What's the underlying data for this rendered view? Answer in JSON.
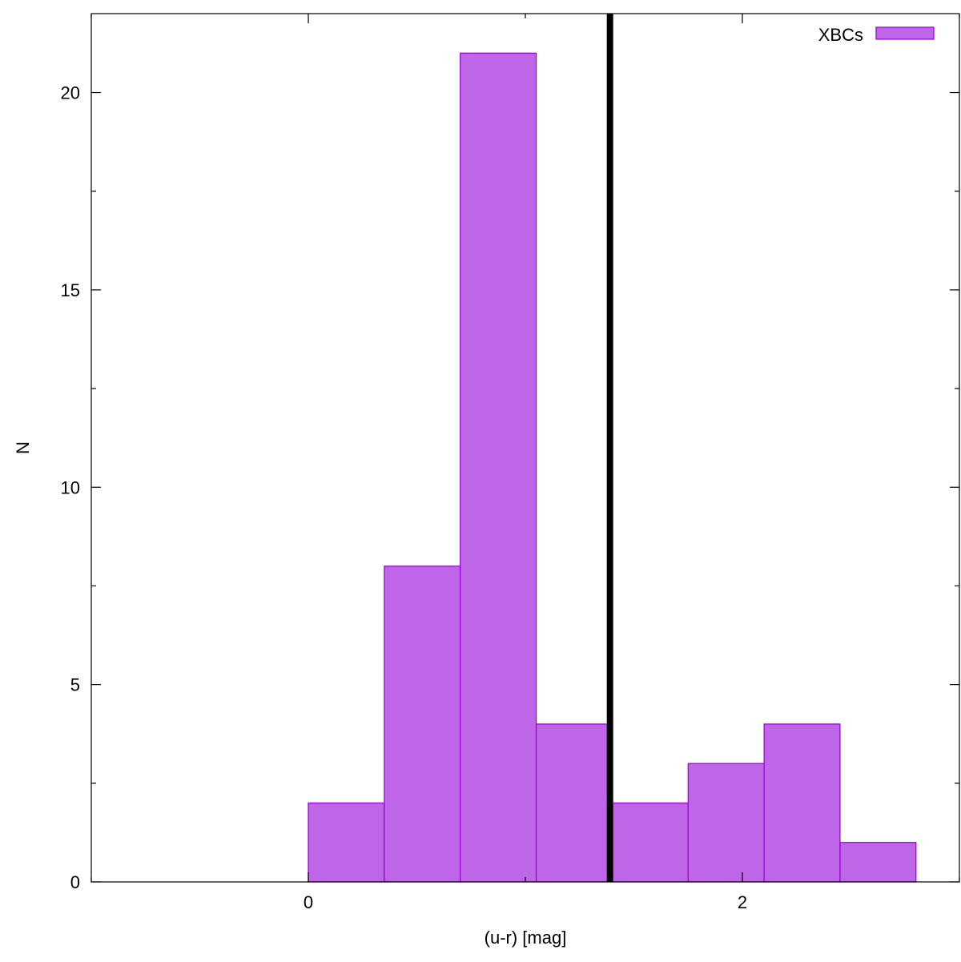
{
  "chart_data": {
    "type": "bar",
    "title": "",
    "xlabel": "(u-r) [mag]",
    "ylabel": "N",
    "xlim": [
      -1.0,
      3.0
    ],
    "ylim": [
      0,
      22
    ],
    "bin_width": 0.35,
    "bins": [
      {
        "x_start": 0.0,
        "x_end": 0.35,
        "value": 2
      },
      {
        "x_start": 0.35,
        "x_end": 0.7,
        "value": 8
      },
      {
        "x_start": 0.7,
        "x_end": 1.05,
        "value": 21
      },
      {
        "x_start": 1.05,
        "x_end": 1.4,
        "value": 4
      },
      {
        "x_start": 1.4,
        "x_end": 1.75,
        "value": 2
      },
      {
        "x_start": 1.75,
        "x_end": 2.1,
        "value": 3
      },
      {
        "x_start": 2.1,
        "x_end": 2.45,
        "value": 4
      },
      {
        "x_start": 2.45,
        "x_end": 2.8,
        "value": 1
      }
    ],
    "series": [
      {
        "name": "XBCs",
        "color": "#bf66e8",
        "edge_color": "#9400d3"
      }
    ],
    "vertical_line": {
      "x": 1.39,
      "color": "#000000"
    },
    "x_ticks": [
      {
        "value": 0,
        "label": "0"
      },
      {
        "value": 2,
        "label": "2"
      }
    ],
    "x_minor_ticks": [
      -1,
      1,
      3
    ],
    "y_ticks": [
      {
        "value": 0,
        "label": "0"
      },
      {
        "value": 5,
        "label": "5"
      },
      {
        "value": 10,
        "label": "10"
      },
      {
        "value": 15,
        "label": "15"
      },
      {
        "value": 20,
        "label": "20"
      }
    ],
    "y_minor_ticks": [
      2.5,
      7.5,
      12.5,
      17.5
    ],
    "legend": {
      "position": "top-right",
      "label": "XBCs"
    },
    "grid": false
  }
}
